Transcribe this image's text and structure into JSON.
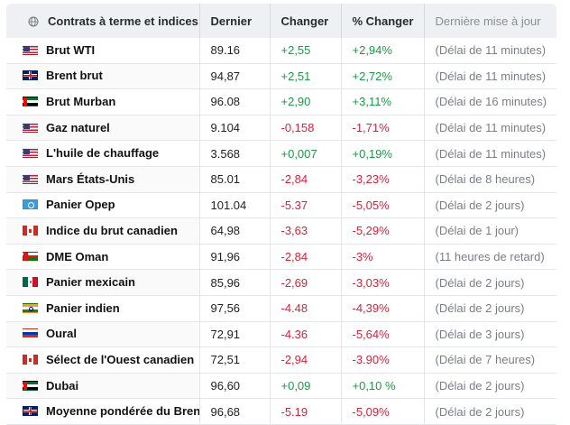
{
  "header": {
    "col_name": "Contrats à terme et indices",
    "col_last": "Dernier",
    "col_change": "Changer",
    "col_pct": "% Changer",
    "col_update": "Dernière mise à jour",
    "icon": "globe-icon"
  },
  "rows": [
    {
      "name": "Brut WTI",
      "flag": "us",
      "last": "89.16",
      "change": "+2,55",
      "pct": "+2,94%",
      "update": "(Délai de 11 minutes)",
      "dir": "up"
    },
    {
      "name": "Brent brut",
      "flag": "gb",
      "last": "94,87",
      "change": "+2,51",
      "pct": "+2,72%",
      "update": "(Délai de 11 minutes)",
      "dir": "up"
    },
    {
      "name": "Brut Murban",
      "flag": "ae",
      "last": "96.08",
      "change": "+2,90",
      "pct": "+3,11%",
      "update": "(Délai de 16 minutes)",
      "dir": "up"
    },
    {
      "name": "Gaz naturel",
      "flag": "us",
      "last": "9.104",
      "change": "-0,158",
      "pct": "-1,71%",
      "update": "(Délai de 11 minutes)",
      "dir": "down"
    },
    {
      "name": "L'huile de chauffage",
      "flag": "us",
      "last": "3.568",
      "change": "+0,007",
      "pct": "+0,19%",
      "update": "(Délai de 11 minutes)",
      "dir": "up"
    },
    {
      "name": "Mars États-Unis",
      "flag": "us",
      "last": "85.01",
      "change": "-2,84",
      "pct": "-3,23%",
      "update": "(Délai de 8 heures)",
      "dir": "down"
    },
    {
      "name": "Panier Opep",
      "flag": "opec",
      "last": "101.04",
      "change": "-5.37",
      "pct": "-5,05%",
      "update": "(Délai de 2 jours)",
      "dir": "down"
    },
    {
      "name": "Indice du brut canadien",
      "flag": "ca",
      "last": "64,98",
      "change": "-3,63",
      "pct": "-5,29%",
      "update": "(Délai de 1 jour)",
      "dir": "down"
    },
    {
      "name": "DME Oman",
      "flag": "om",
      "last": "91,96",
      "change": "-2,84",
      "pct": "-3%",
      "update": "(11 heures de retard)",
      "dir": "down"
    },
    {
      "name": "Panier mexicain",
      "flag": "mx",
      "last": "85,96",
      "change": "-2,69",
      "pct": "-3,03%",
      "update": "(Délai de 2 jours)",
      "dir": "down"
    },
    {
      "name": "Panier indien",
      "flag": "in",
      "last": "97,56",
      "change": "-4.48",
      "pct": "-4,39%",
      "update": "(Délai de 2 jours)",
      "dir": "down"
    },
    {
      "name": "Oural",
      "flag": "ru",
      "last": "72,91",
      "change": "-4.36",
      "pct": "-5,64%",
      "update": "(Délai de 3 jours)",
      "dir": "down"
    },
    {
      "name": "Sélect de l'Ouest canadien",
      "flag": "ca",
      "last": "72,51",
      "change": "-2,94",
      "pct": "-3.90%",
      "update": "(Délai de 7 heures)",
      "dir": "down"
    },
    {
      "name": "Dubai",
      "flag": "ae",
      "last": "96,60",
      "change": "+0,09",
      "pct": "+0,10 %",
      "update": "(Délai de 2 jours)",
      "dir": "up"
    },
    {
      "name": "Moyenne pondérée du Brent",
      "flag": "gb",
      "last": "96,68",
      "change": "-5.19",
      "pct": "-5,09%",
      "update": "(Délai de 2 jours)",
      "dir": "down"
    }
  ],
  "colors": {
    "up": "#1a9a47",
    "down": "#d3243a",
    "header_bg": "#eef0f3"
  }
}
